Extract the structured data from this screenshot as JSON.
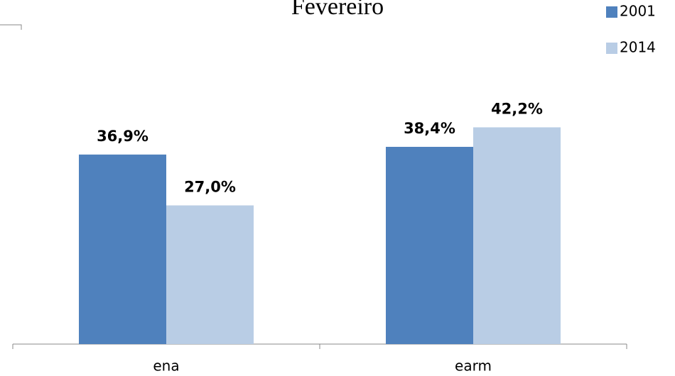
{
  "chart_data": {
    "type": "bar",
    "title": "Fevereiro",
    "categories": [
      "ena",
      "earm"
    ],
    "series": [
      {
        "name": "2001",
        "color": "#4f81bd",
        "values": [
          36.9,
          38.4
        ],
        "value_labels": [
          "36,9%",
          "38,4%"
        ]
      },
      {
        "name": "2014",
        "color": "#b9cde5",
        "values": [
          27.0,
          42.2
        ],
        "value_labels": [
          "27,0%",
          "42,2%"
        ]
      }
    ],
    "legend": "top-right"
  }
}
